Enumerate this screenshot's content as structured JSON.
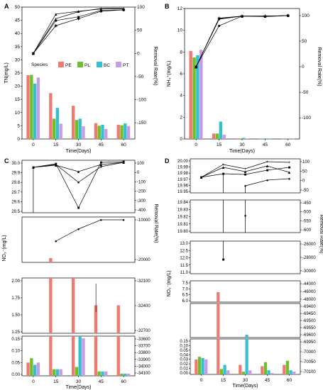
{
  "colors": {
    "PE": "#f07a72",
    "PL": "#6fbf2a",
    "BC": "#35c0cf",
    "PT": "#c79be8",
    "line": "#000000"
  },
  "chart_data": [
    {
      "panel": "A",
      "type": "bar",
      "categories": [
        "0",
        "15",
        "30",
        "45",
        "60"
      ],
      "xlabel": "Time(Days)",
      "ylabel": "TN(mg/L)",
      "y2label": "Removal Rate(%)",
      "ylim": [
        0,
        50
      ],
      "yticks": [
        "0",
        "5",
        "10",
        "15",
        "20",
        "25",
        "30",
        "35",
        "40",
        "45",
        "50"
      ],
      "y2ticks": [
        "100",
        "50",
        "0",
        "-50",
        "-100",
        "-150"
      ],
      "legend_title": "Species",
      "legend": [
        "PE",
        "PL",
        "BC",
        "PT"
      ],
      "series": [
        {
          "name": "PE",
          "values": [
            24.2,
            17.4,
            12.6,
            6.0,
            5.4
          ]
        },
        {
          "name": "PL",
          "values": [
            24.3,
            7.7,
            7.2,
            5.0,
            5.2
          ]
        },
        {
          "name": "BC",
          "values": [
            21.0,
            11.8,
            7.7,
            5.4,
            5.9
          ]
        },
        {
          "name": "PT",
          "values": [
            23.3,
            5.8,
            4.8,
            3.8,
            4.9
          ]
        }
      ],
      "removal": [
        [
          0,
          75,
          90,
          97,
          98
        ],
        [
          0,
          85,
          91,
          96,
          96
        ],
        [
          0,
          71,
          79,
          93,
          94
        ],
        [
          0,
          60,
          75,
          91,
          94
        ]
      ],
      "removal_markers": [
        "+",
        "▲",
        "■",
        "✱"
      ]
    },
    {
      "panel": "B",
      "type": "bar",
      "categories": [
        "0",
        "15",
        "30",
        "45",
        "60"
      ],
      "xlabel": "Time(Days)",
      "ylabel": "NH₄⁺(mg/L)",
      "y2label": "Removal Rate(%)",
      "ylim": [
        0,
        12
      ],
      "yticks": [
        "0",
        "2",
        "4",
        "6",
        "8",
        "10",
        "12"
      ],
      "y2ticks": [
        "100",
        "50",
        "0",
        "-50",
        "-100"
      ],
      "series": [
        {
          "name": "PE",
          "values": [
            8.1,
            0.5,
            0.05,
            0.02,
            0.02
          ]
        },
        {
          "name": "PL",
          "values": [
            7.5,
            0.5,
            0.05,
            0.02,
            0.02
          ]
        },
        {
          "name": "BC",
          "values": [
            7.7,
            1.6,
            0.1,
            0.05,
            0.02
          ]
        },
        {
          "name": "PT",
          "values": [
            8.2,
            0.4,
            0.05,
            0.02,
            0.02
          ]
        }
      ],
      "removal": [
        [
          0,
          93,
          99,
          99,
          100
        ],
        [
          0,
          94,
          99,
          99,
          100
        ],
        [
          0,
          80,
          99,
          98,
          100
        ],
        [
          0,
          95,
          99,
          99,
          100
        ]
      ],
      "removal_markers": [
        "+",
        "▲",
        "■",
        "✱"
      ]
    },
    {
      "panel": "C",
      "type": "bar",
      "categories": [
        "0",
        "15",
        "30",
        "45",
        "60"
      ],
      "xlabel": "Time(Days)",
      "ylabel": "NO₃⁻(mg/L)",
      "y2label": "Removal Rate(%)",
      "broken_axis": true,
      "segments": [
        {
          "yticks": [
            "29.5",
            "29.6",
            "29.7",
            "29.8",
            "29.9",
            "30.0"
          ],
          "y2ticks": [
            "100",
            "0",
            "-100",
            "-200",
            "-300",
            "-400"
          ]
        },
        {
          "yticks": [],
          "y2ticks": [
            "-10000",
            "-20000"
          ]
        },
        {
          "yticks": [
            "1.25",
            "1.50",
            "1.75",
            "2.00"
          ],
          "y2ticks": [
            "-32100",
            "-32400",
            "-32700"
          ]
        },
        {
          "yticks": [
            "0.00",
            "0.05",
            "0.10",
            "0.15"
          ],
          "y2ticks": [
            "-33600",
            "-33700",
            "-33800",
            "-33900",
            "-34000",
            "-34100"
          ]
        }
      ],
      "series": [
        {
          "name": "PE",
          "values": [
            0.06,
            10.0,
            3.6,
            1.63,
            1.63
          ]
        },
        {
          "name": "PL",
          "values": [
            0.08,
            0.03,
            0.04,
            0.02,
            0.01
          ]
        },
        {
          "name": "BC",
          "values": [
            0.05,
            0.03,
            0.31,
            0.02,
            0.01
          ]
        },
        {
          "name": "PT",
          "values": [
            0.06,
            0.03,
            0.17,
            0.02,
            0.01
          ]
        }
      ]
    },
    {
      "panel": "D",
      "type": "bar",
      "categories": [
        "0",
        "15",
        "30",
        "45",
        "60"
      ],
      "xlabel": "Time(Days)",
      "ylabel": "NO₂⁻(mg/L)",
      "y2label": "Removal Rate(%)",
      "broken_axis": true,
      "segments": [
        {
          "yticks": [
            "19.95",
            "19.96",
            "19.97",
            "19.98",
            "19.99",
            "20.00"
          ],
          "y2ticks": [
            "100",
            "50",
            "0",
            "-50"
          ]
        },
        {
          "yticks": [
            "19.80",
            "19.81",
            "19.82",
            "19.83",
            "19.84"
          ],
          "y2ticks": [
            "-450",
            "-500",
            "-550",
            "-600"
          ]
        },
        {
          "yticks": [
            "11.0",
            "11.5",
            "12.0",
            "12.5",
            "13.0"
          ],
          "y2ticks": [
            "-26000",
            "-28000",
            "-30000"
          ]
        },
        {
          "yticks": [
            "6.0",
            "6.5",
            "7.0",
            "7.5"
          ],
          "y2ticks": [
            "-44000",
            "-46000",
            "-48000"
          ]
        },
        {
          "yticks": [],
          "y2ticks": [
            "-69400",
            "-69450",
            "-69500",
            "-69550",
            "-69600"
          ]
        },
        {
          "yticks": [
            "0.00",
            "0.01",
            "0.02",
            "0.03",
            "0.04",
            "0.05",
            "0.10",
            "0.15"
          ],
          "y2ticks": [
            "-69950",
            "-70000",
            "-70050",
            "-70100"
          ]
        }
      ],
      "series": [
        {
          "name": "PE",
          "values": [
            0.022,
            6.8,
            0.014,
            0.012,
            0.014
          ]
        },
        {
          "name": "PL",
          "values": [
            0.026,
            0.008,
            0.004,
            0.018,
            0.02
          ]
        },
        {
          "name": "BC",
          "values": [
            0.024,
            0.014,
            0.063,
            0.006,
            0.006
          ]
        },
        {
          "name": "PT",
          "values": [
            0.022,
            0.006,
            0.006,
            0.002,
            0.004
          ]
        }
      ]
    }
  ]
}
